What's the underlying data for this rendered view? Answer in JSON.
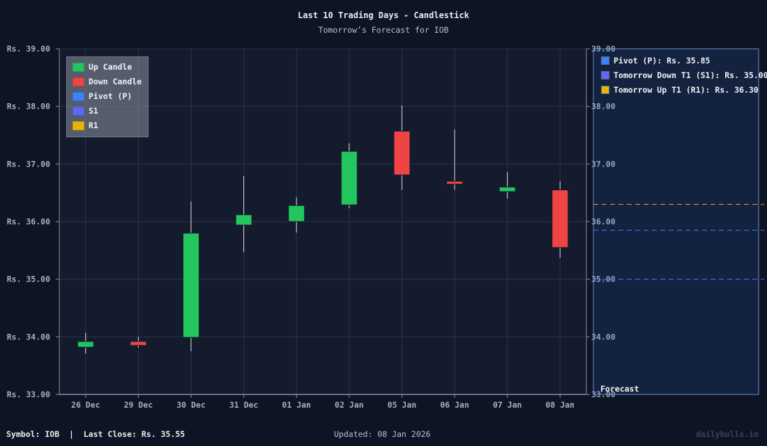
{
  "header": {
    "title": "Last 10 Trading Days - Candlestick",
    "subtitle": "Tomorrow’s Forecast for IOB"
  },
  "legend": {
    "items": [
      {
        "label": "Up Candle",
        "color": "#22c55e"
      },
      {
        "label": "Down Candle",
        "color": "#ef4444"
      },
      {
        "label": "Pivot (P)",
        "color": "#3b82f6"
      },
      {
        "label": "S1",
        "color": "#6366f1"
      },
      {
        "label": "R1",
        "color": "#eab308"
      }
    ]
  },
  "forecast_legend": {
    "items": [
      {
        "label": "Pivot (P): Rs. 35.85",
        "color": "#3b82f6"
      },
      {
        "label": "Tomorrow Down T1 (S1): Rs. 35.00",
        "color": "#6366f1"
      },
      {
        "label": "Tomorrow Up T1 (R1): Rs. 36.30",
        "color": "#eab308"
      }
    ],
    "panel_label": "Forecast"
  },
  "footer": {
    "left": "Symbol: IOB  |  Last Close: Rs. 35.55",
    "middle": "Updated: 08 Jan 2026",
    "watermark": "dailybulls.in"
  },
  "chart_data": {
    "type": "candlestick",
    "title": "Last 10 Trading Days - Candlestick",
    "subtitle": "Tomorrow’s Forecast for IOB",
    "xlabel": "",
    "ylabel": "",
    "ylim": [
      33,
      39
    ],
    "y_ticks": [
      "Rs. 33.00",
      "Rs. 34.00",
      "Rs. 35.00",
      "Rs. 36.00",
      "Rs. 37.00",
      "Rs. 38.00",
      "Rs. 39.00"
    ],
    "right_y_ticks": [
      "33.00",
      "34.00",
      "35.00",
      "36.00",
      "37.00",
      "38.00",
      "39.00"
    ],
    "categories": [
      "26 Dec",
      "29 Dec",
      "30 Dec",
      "31 Dec",
      "01 Jan",
      "02 Jan",
      "05 Jan",
      "06 Jan",
      "07 Jan",
      "08 Jan"
    ],
    "candles": [
      {
        "date": "26 Dec",
        "open": 33.82,
        "high": 34.07,
        "low": 33.71,
        "close": 33.92
      },
      {
        "date": "29 Dec",
        "open": 33.92,
        "high": 34.0,
        "low": 33.81,
        "close": 33.85
      },
      {
        "date": "30 Dec",
        "open": 33.99,
        "high": 36.35,
        "low": 33.75,
        "close": 35.8
      },
      {
        "date": "31 Dec",
        "open": 35.94,
        "high": 36.79,
        "low": 35.47,
        "close": 36.12
      },
      {
        "date": "01 Jan",
        "open": 36.0,
        "high": 36.42,
        "low": 35.81,
        "close": 36.28
      },
      {
        "date": "02 Jan",
        "open": 36.29,
        "high": 37.36,
        "low": 36.23,
        "close": 37.22
      },
      {
        "date": "05 Jan",
        "open": 37.57,
        "high": 38.02,
        "low": 36.55,
        "close": 36.81
      },
      {
        "date": "06 Jan",
        "open": 36.7,
        "high": 37.6,
        "low": 36.55,
        "close": 36.65
      },
      {
        "date": "07 Jan",
        "open": 36.52,
        "high": 36.86,
        "low": 36.4,
        "close": 36.6
      },
      {
        "date": "08 Jan",
        "open": 36.55,
        "high": 36.7,
        "low": 35.37,
        "close": 35.55
      }
    ],
    "forecast_levels": [
      {
        "name": "Pivot (P)",
        "value": 35.85,
        "color": "#3b82f6"
      },
      {
        "name": "S1",
        "value": 35.0,
        "color": "#6366f1"
      },
      {
        "name": "R1",
        "value": 36.3,
        "color": "#eab308"
      }
    ],
    "colors": {
      "up": "#22c55e",
      "down": "#ef4444",
      "wick": "#dbe3f0"
    },
    "grid": true,
    "legend_position": "top-left"
  }
}
